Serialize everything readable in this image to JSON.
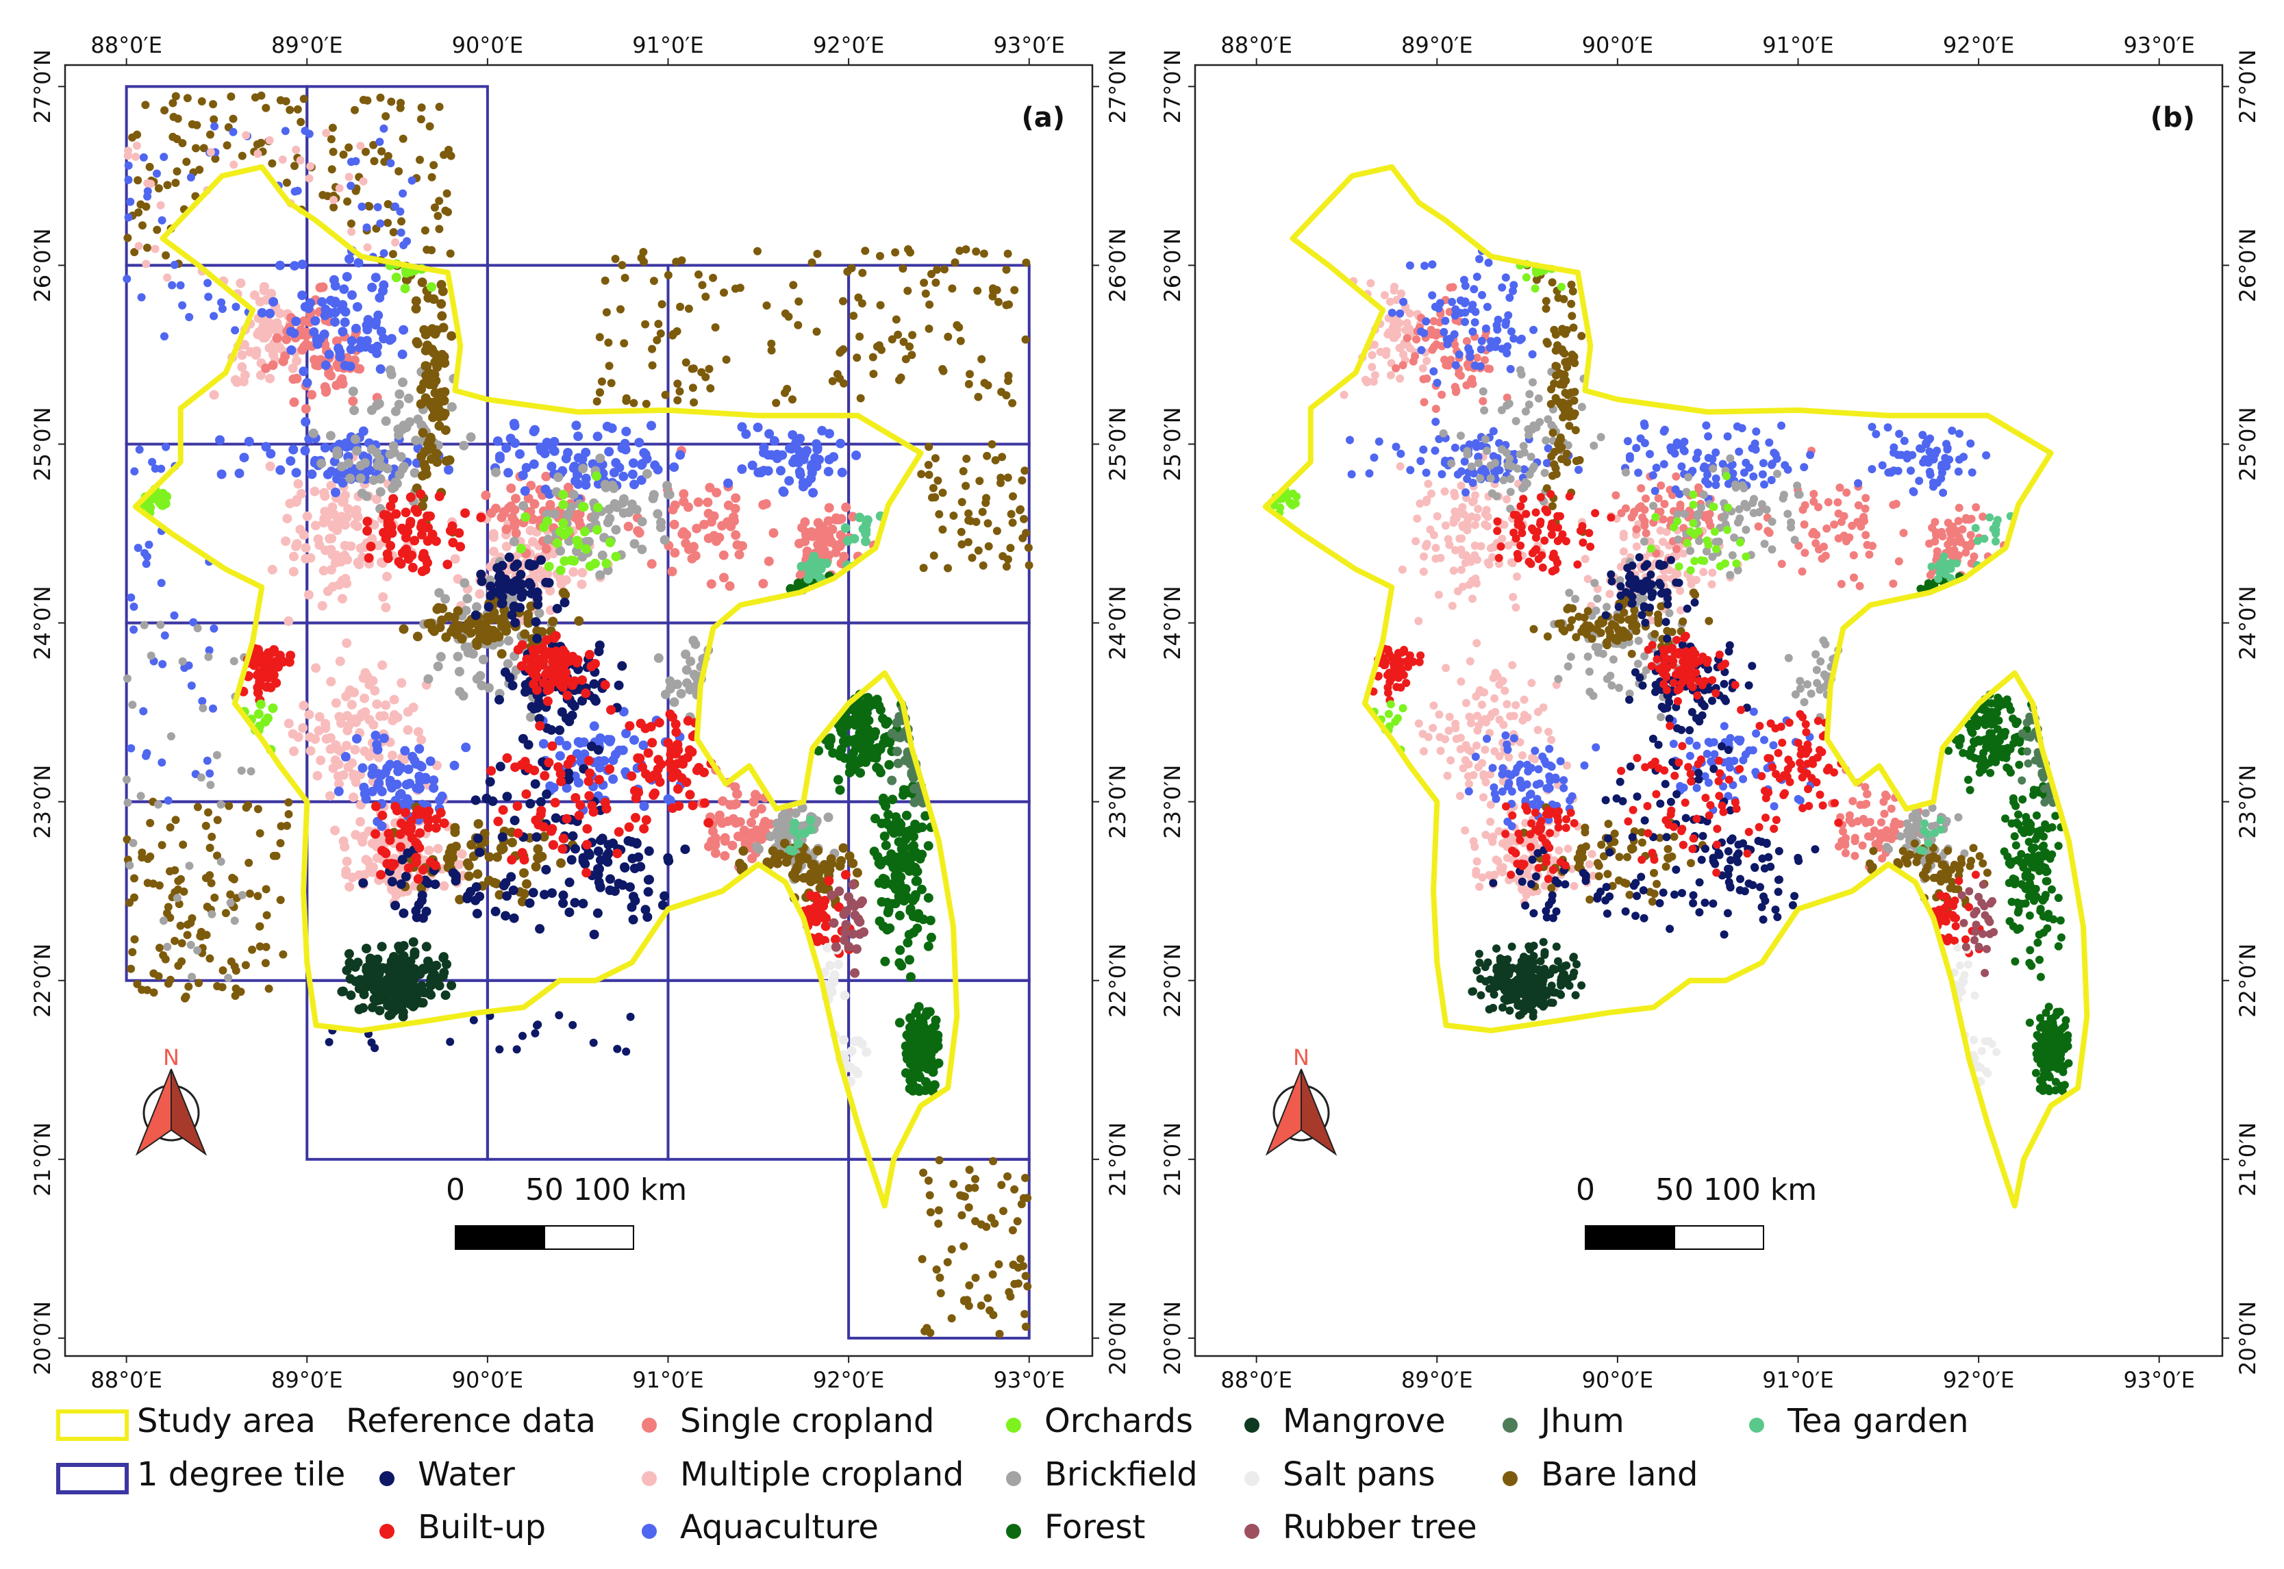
{
  "figure": {
    "panels": [
      {
        "label": "(a)",
        "shows_tiles": true,
        "extent": {
          "lon": [
            87.66,
            93.35
          ],
          "lat": [
            19.9,
            27.12
          ]
        }
      },
      {
        "label": "(b)",
        "shows_tiles": false,
        "extent": {
          "lon": [
            87.66,
            93.35
          ],
          "lat": [
            19.9,
            27.12
          ]
        }
      }
    ],
    "graticule": {
      "lon_ticks": [
        88,
        89,
        90,
        91,
        92,
        93
      ],
      "lon_labels": [
        "88°0′E",
        "89°0′E",
        "90°0′E",
        "91°0′E",
        "92°0′E",
        "93°0′E"
      ],
      "lat_ticks": [
        20,
        21,
        22,
        23,
        24,
        25,
        26,
        27
      ],
      "lat_labels": [
        "20°0′N",
        "21°0′N",
        "22°0′N",
        "23°0′N",
        "24°0′N",
        "25°0′N",
        "26°0′N",
        "27°0′N"
      ]
    },
    "scale_bar": {
      "labels": [
        "0",
        "50",
        "100 km"
      ],
      "km_total": 100
    },
    "north_arrow": {
      "label": "N"
    },
    "colors": {
      "study_area": "#f2ee1c",
      "tile": "#3c36a2",
      "water": "#0d1866",
      "built_up": "#ee1b1b",
      "aquaculture": "#4f66f0",
      "single_cropland": "#f27d7d",
      "multiple_cropland": "#f8bcbc",
      "orchards": "#7df21e",
      "brickfield": "#a3a3a3",
      "forest": "#0b6a10",
      "mangrove": "#0e3a22",
      "salt_pans": "#ececec",
      "rubber_tree": "#9c5060",
      "jhum": "#4d7d57",
      "bare_land": "#7d5b0c",
      "tea_garden": "#59c98b"
    }
  },
  "legend": {
    "study_area": "Study area",
    "tile": "1 degree tile",
    "heading": "Reference data",
    "classes": [
      {
        "key": "water",
        "label": "Water"
      },
      {
        "key": "built_up",
        "label": "Built-up"
      },
      {
        "key": "single_cropland",
        "label": "Single cropland"
      },
      {
        "key": "multiple_cropland",
        "label": "Multiple cropland"
      },
      {
        "key": "aquaculture",
        "label": "Aquaculture"
      },
      {
        "key": "orchards",
        "label": "Orchards"
      },
      {
        "key": "brickfield",
        "label": "Brickfield"
      },
      {
        "key": "forest",
        "label": "Forest"
      },
      {
        "key": "mangrove",
        "label": "Mangrove"
      },
      {
        "key": "salt_pans",
        "label": "Salt pans"
      },
      {
        "key": "rubber_tree",
        "label": "Rubber tree"
      },
      {
        "key": "jhum",
        "label": "Jhum"
      },
      {
        "key": "bare_land",
        "label": "Bare land"
      },
      {
        "key": "tea_garden",
        "label": "Tea garden"
      }
    ]
  }
}
